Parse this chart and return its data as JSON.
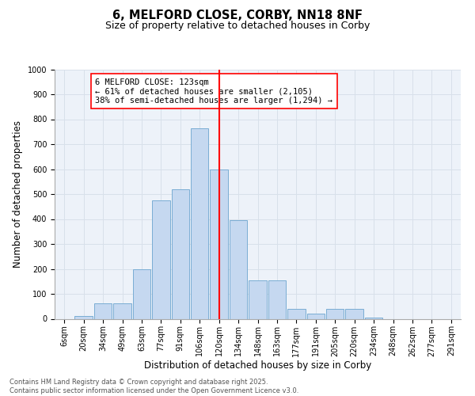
{
  "title": "6, MELFORD CLOSE, CORBY, NN18 8NF",
  "subtitle": "Size of property relative to detached houses in Corby",
  "xlabel": "Distribution of detached houses by size in Corby",
  "ylabel": "Number of detached properties",
  "bar_labels": [
    "6sqm",
    "20sqm",
    "34sqm",
    "49sqm",
    "63sqm",
    "77sqm",
    "91sqm",
    "106sqm",
    "120sqm",
    "134sqm",
    "148sqm",
    "163sqm",
    "177sqm",
    "191sqm",
    "205sqm",
    "220sqm",
    "234sqm",
    "248sqm",
    "262sqm",
    "277sqm",
    "291sqm"
  ],
  "bar_values": [
    0,
    12,
    62,
    62,
    200,
    475,
    520,
    765,
    600,
    395,
    155,
    155,
    40,
    22,
    40,
    40,
    5,
    0,
    0,
    0,
    0
  ],
  "bar_color": "#c5d8f0",
  "bar_edgecolor": "#7aadd4",
  "vline_x": 8,
  "vline_color": "red",
  "annotation_text": "6 MELFORD CLOSE: 123sqm\n← 61% of detached houses are smaller (2,105)\n38% of semi-detached houses are larger (1,294) →",
  "annotation_box_edgecolor": "red",
  "annotation_fontsize": 7.5,
  "ylim": [
    0,
    1000
  ],
  "yticks": [
    0,
    100,
    200,
    300,
    400,
    500,
    600,
    700,
    800,
    900,
    1000
  ],
  "grid_color": "#d8e0ea",
  "bg_color": "#edf2f9",
  "footnote": "Contains HM Land Registry data © Crown copyright and database right 2025.\nContains public sector information licensed under the Open Government Licence v3.0.",
  "footnote_fontsize": 6.0,
  "title_fontsize": 10.5,
  "subtitle_fontsize": 9,
  "xlabel_fontsize": 8.5,
  "ylabel_fontsize": 8.5,
  "tick_fontsize": 7
}
